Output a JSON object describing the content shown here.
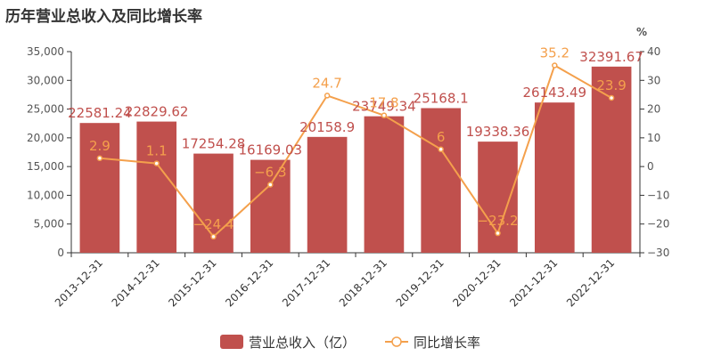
{
  "chart_data": {
    "type": "bar",
    "title": "历年营业总收入及同比增长率",
    "categories": [
      "2013-12-31",
      "2014-12-31",
      "2015-12-31",
      "2016-12-31",
      "2017-12-31",
      "2018-12-31",
      "2019-12-31",
      "2020-12-31",
      "2021-12-31",
      "2022-12-31"
    ],
    "series": [
      {
        "name": "营业总收入（亿）",
        "type": "bar",
        "axis": "left",
        "color": "#c0504d",
        "values": [
          22581.24,
          22829.62,
          17254.28,
          16169.03,
          20158.9,
          23749.34,
          25168.1,
          19338.36,
          26143.49,
          32391.67
        ],
        "labels": [
          "22581.24",
          "22829.62",
          "17254.28",
          "16169.03",
          "20158.9",
          "23749.34",
          "25168.1",
          "19338.36",
          "26143.49",
          "32391.67"
        ]
      },
      {
        "name": "同比增长率",
        "type": "line",
        "axis": "right",
        "color": "#f4a04c",
        "values": [
          2.9,
          1.1,
          -24.4,
          -6.3,
          24.7,
          17.8,
          6,
          -23.2,
          35.2,
          23.9
        ],
        "labels": [
          "2.9",
          "1.1",
          "−24.4",
          "−6.3",
          "24.7",
          "17.8",
          "6",
          "−23.2",
          "35.2",
          "23.9"
        ]
      }
    ],
    "y_left": {
      "min": 0,
      "max": 35000,
      "ticks": [
        "0",
        "5,000",
        "10,000",
        "15,000",
        "20,000",
        "25,000",
        "30,000",
        "35,000"
      ],
      "tick_values": [
        0,
        5000,
        10000,
        15000,
        20000,
        25000,
        30000,
        35000
      ]
    },
    "y_right": {
      "min": -30,
      "max": 40,
      "unit": "%",
      "ticks": [
        "−30",
        "−20",
        "−10",
        "0",
        "10",
        "20",
        "30",
        "40"
      ],
      "tick_values": [
        -30,
        -20,
        -10,
        0,
        10,
        20,
        30,
        40
      ]
    },
    "legend_position": "bottom-center",
    "grid": false
  }
}
